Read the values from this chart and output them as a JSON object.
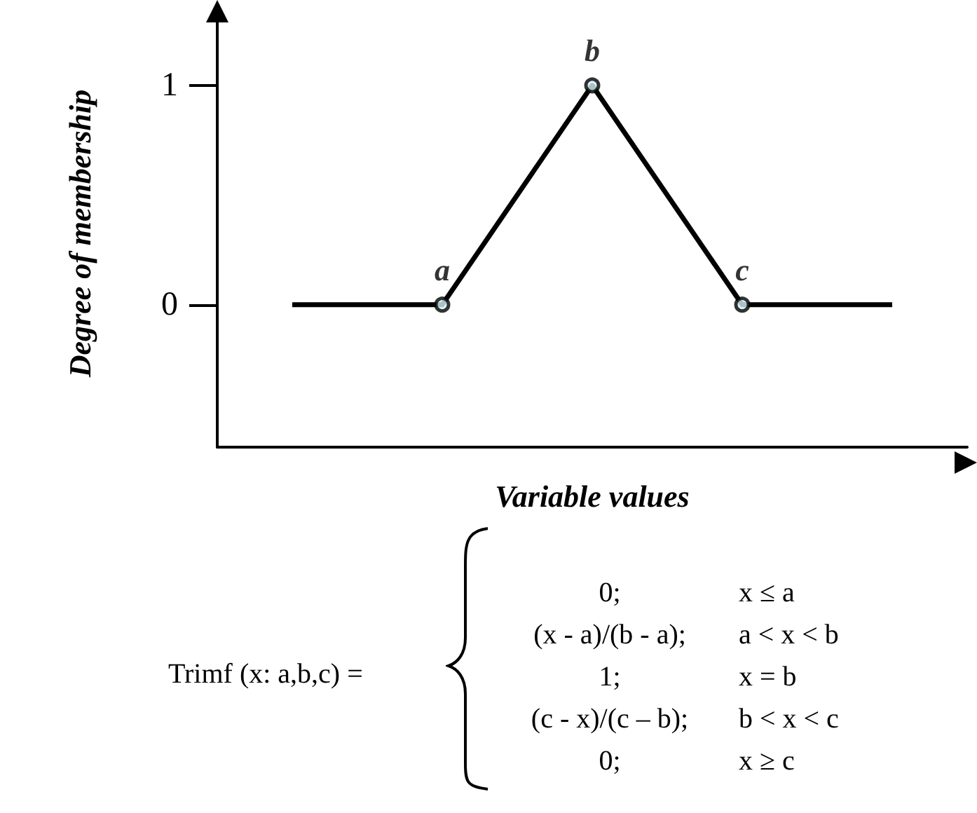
{
  "chart_data": {
    "type": "line",
    "xlabel": "Variable values",
    "ylabel": "Degree of membership",
    "categories": [
      null,
      null,
      null,
      null,
      null
    ],
    "ylim": [
      -0.65,
      1.3
    ],
    "yticks": [
      0,
      1
    ],
    "series": [
      {
        "type": "line",
        "color": "#000000",
        "values": [
          0,
          0,
          1,
          0,
          0
        ],
        "marker": "none",
        "line_style": "solid"
      },
      {
        "type": "scatter",
        "color": "#000000",
        "values": [
          null,
          0,
          1,
          0,
          null
        ],
        "marker": "circle",
        "value_labels": [
          null,
          "a",
          "b",
          "c",
          null
        ]
      }
    ],
    "annotations": [
      "Trimf (x: a,b,c) =",
      "0;",
      "x ≤ a",
      "(x - a)/(b - a);",
      "a < x < b",
      "1;",
      "x = b",
      "(c - x)/(c – b);",
      "b < x < c",
      "0;",
      "x ≥ c"
    ]
  }
}
